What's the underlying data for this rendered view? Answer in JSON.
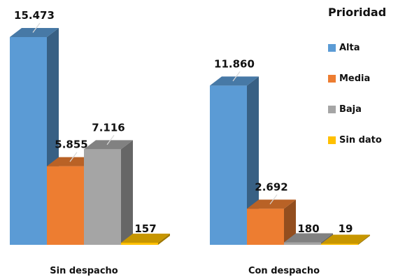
{
  "chart_data": {
    "type": "bar",
    "title": "",
    "xlabel": "",
    "ylabel": "",
    "categories": [
      "Sin  despacho",
      "Con despacho"
    ],
    "legend_title": "Prioridad",
    "legend_position": "top-right",
    "grid": false,
    "ylim": [
      0,
      16000
    ],
    "series": [
      {
        "name": "Alta",
        "color": "#5b9bd5",
        "values": [
          15473,
          11860
        ]
      },
      {
        "name": "Media",
        "color": "#ed7d31",
        "values": [
          5855,
          2692
        ]
      },
      {
        "name": "Baja",
        "color": "#a5a5a5",
        "values": [
          7116,
          180
        ]
      },
      {
        "name": "Sin dato",
        "color": "#ffc000",
        "values": [
          157,
          19
        ]
      }
    ],
    "data_labels": [
      [
        "15.473",
        "5.855",
        "7.116",
        "157"
      ],
      [
        "11.860",
        "2.692",
        "180",
        "19"
      ]
    ]
  }
}
